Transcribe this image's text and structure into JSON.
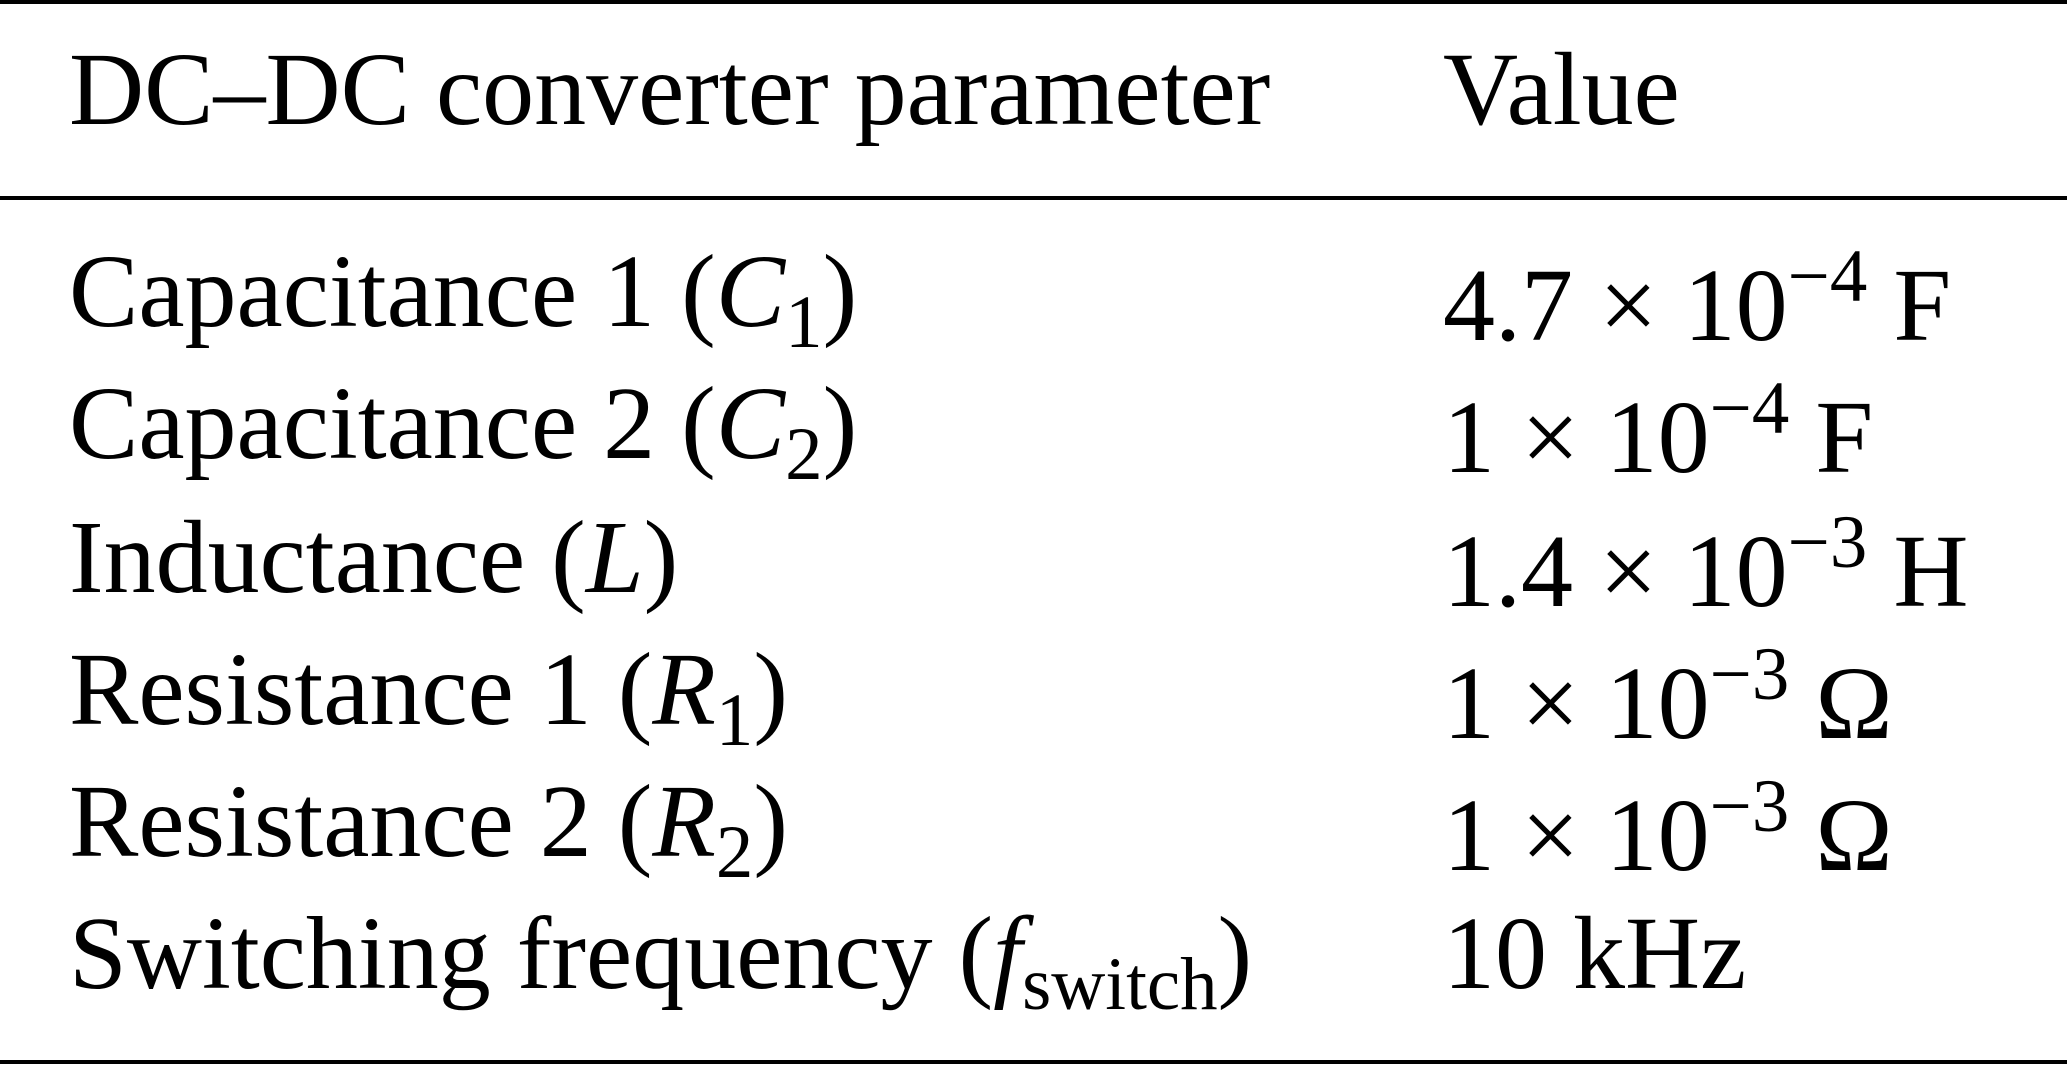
{
  "table": {
    "header": [
      [
        {
          "text": "DC–DC converter parameter"
        }
      ],
      [
        {
          "text": "Value"
        }
      ]
    ],
    "rows": [
      [
        [
          {
            "text": "Capacitance 1 ("
          },
          {
            "text": "C",
            "style": "italic"
          },
          {
            "text": "1",
            "style": "sub"
          },
          {
            "text": ")"
          }
        ],
        [
          {
            "text": "4.7 × 10"
          },
          {
            "text": "−4",
            "style": "sup"
          },
          {
            "text": " F"
          }
        ]
      ],
      [
        [
          {
            "text": "Capacitance 2 ("
          },
          {
            "text": "C",
            "style": "italic"
          },
          {
            "text": "2",
            "style": "sub"
          },
          {
            "text": ")"
          }
        ],
        [
          {
            "text": "1 × 10"
          },
          {
            "text": "−4",
            "style": "sup"
          },
          {
            "text": " F"
          }
        ]
      ],
      [
        [
          {
            "text": "Inductance ("
          },
          {
            "text": "L",
            "style": "italic"
          },
          {
            "text": ")"
          }
        ],
        [
          {
            "text": "1.4 × 10"
          },
          {
            "text": "−3",
            "style": "sup"
          },
          {
            "text": " H"
          }
        ]
      ],
      [
        [
          {
            "text": "Resistance 1 ("
          },
          {
            "text": "R",
            "style": "italic"
          },
          {
            "text": "1",
            "style": "sub"
          },
          {
            "text": ")"
          }
        ],
        [
          {
            "text": "1 × 10"
          },
          {
            "text": "−3",
            "style": "sup"
          },
          {
            "text": " Ω"
          }
        ]
      ],
      [
        [
          {
            "text": "Resistance 2 ("
          },
          {
            "text": "R",
            "style": "italic"
          },
          {
            "text": "2",
            "style": "sub"
          },
          {
            "text": ")"
          }
        ],
        [
          {
            "text": "1 × 10"
          },
          {
            "text": "−3",
            "style": "sup"
          },
          {
            "text": " Ω"
          }
        ]
      ],
      [
        [
          {
            "text": "Switching frequency ("
          },
          {
            "text": "f",
            "style": "italic"
          },
          {
            "text": "switch",
            "style": "sub"
          },
          {
            "text": ")"
          }
        ],
        [
          {
            "text": "10 kHz"
          }
        ]
      ]
    ]
  }
}
